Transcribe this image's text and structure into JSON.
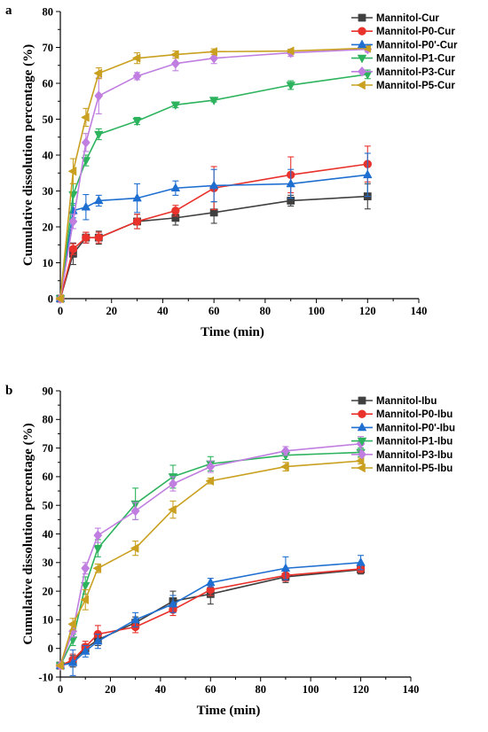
{
  "chart_data": [
    {
      "type": "line",
      "panel": "a",
      "xlabel": "Time (min)",
      "ylabel": "Cumulative dissolution percentage (%)",
      "xlim": [
        0,
        140
      ],
      "ylim": [
        0,
        80
      ],
      "xticks": [
        0,
        20,
        40,
        60,
        80,
        100,
        120,
        140
      ],
      "yticks": [
        0,
        10,
        20,
        30,
        40,
        50,
        60,
        70,
        80
      ],
      "x": [
        0,
        5,
        10,
        15,
        30,
        45,
        60,
        90,
        120
      ],
      "legend_position": "top-right",
      "series": [
        {
          "name": "Mannitol-Cur",
          "color": "#404040",
          "marker": "square",
          "values": [
            0,
            12.5,
            17.0,
            17.0,
            21.5,
            22.5,
            24.0,
            27.3,
            28.5
          ],
          "errors": [
            0,
            3.0,
            1.5,
            1.8,
            2.0,
            2.0,
            3.0,
            1.5,
            3.5
          ]
        },
        {
          "name": "Mannitol-P0-Cur",
          "color": "#e8322b",
          "marker": "circle",
          "values": [
            0,
            13.8,
            17.0,
            17.0,
            21.5,
            24.5,
            30.8,
            34.5,
            37.5
          ],
          "errors": [
            0,
            1.5,
            1.5,
            1.5,
            2.0,
            1.5,
            6.0,
            5.0,
            5.0
          ]
        },
        {
          "name": "Mannitol-P0'-Cur",
          "color": "#1f6fd1",
          "marker": "triangle-up",
          "values": [
            0,
            24.5,
            25.5,
            27.3,
            28.0,
            30.8,
            31.5,
            32.0,
            34.5
          ],
          "errors": [
            0,
            2.0,
            3.5,
            1.5,
            4.0,
            2.0,
            4.5,
            4.0,
            6.0
          ]
        },
        {
          "name": "Mannitol-P1-Cur",
          "color": "#2db35d",
          "marker": "triangle-down",
          "values": [
            0,
            29.0,
            38.5,
            45.8,
            49.5,
            54.0,
            55.3,
            59.5,
            62.5
          ],
          "errors": [
            0,
            3.0,
            1.5,
            1.5,
            1.0,
            0.8,
            0.5,
            1.2,
            1.2
          ]
        },
        {
          "name": "Mannitol-P3-Cur",
          "color": "#c07ee0",
          "marker": "diamond",
          "values": [
            0,
            21.5,
            43.5,
            56.5,
            62.0,
            65.5,
            67.0,
            68.5,
            69.5
          ],
          "errors": [
            0,
            2.0,
            2.5,
            5.0,
            1.0,
            2.0,
            1.5,
            1.0,
            0.8
          ]
        },
        {
          "name": "Mannitol-P5-Cur",
          "color": "#c9a020",
          "marker": "triangle-left",
          "values": [
            0,
            35.5,
            50.5,
            62.8,
            67.0,
            68.0,
            68.8,
            69.0,
            69.8
          ],
          "errors": [
            0,
            3.5,
            2.5,
            1.5,
            1.5,
            1.0,
            0.8,
            0.5,
            0.5
          ]
        }
      ]
    },
    {
      "type": "line",
      "panel": "b",
      "xlabel": "Time (min)",
      "ylabel": "Cumulative dissolution percentage (%)",
      "xlim": [
        0,
        140
      ],
      "ylim": [
        -10,
        90
      ],
      "xticks": [
        0,
        20,
        40,
        60,
        80,
        100,
        120,
        140
      ],
      "yticks": [
        -10,
        0,
        10,
        20,
        30,
        40,
        50,
        60,
        70,
        80,
        90
      ],
      "x": [
        0,
        5,
        10,
        15,
        30,
        45,
        60,
        90,
        120
      ],
      "legend_position": "top-right",
      "series": [
        {
          "name": "Mannitol-Ibu",
          "color": "#404040",
          "marker": "square",
          "values": [
            -6.0,
            -4.5,
            0,
            3.0,
            9.0,
            16.5,
            19.0,
            25.0,
            27.5
          ],
          "errors": [
            0,
            2.0,
            1.5,
            2.0,
            2.0,
            3.5,
            3.5,
            2.0,
            1.5
          ]
        },
        {
          "name": "Mannitol-P0-Ibu",
          "color": "#e8322b",
          "marker": "circle",
          "values": [
            -6.0,
            -4.0,
            0.5,
            5.0,
            7.5,
            13.5,
            20.5,
            25.5,
            27.8
          ],
          "errors": [
            0,
            2.0,
            2.0,
            3.0,
            2.0,
            2.0,
            2.0,
            2.0,
            1.2
          ]
        },
        {
          "name": "Mannitol-P0'-Ibu",
          "color": "#1f6fd1",
          "marker": "triangle-up",
          "values": [
            -6.0,
            -5.0,
            -1.0,
            2.5,
            10.0,
            15.5,
            23.0,
            28.0,
            30.0
          ],
          "errors": [
            0,
            4.5,
            2.0,
            2.5,
            2.5,
            3.0,
            1.5,
            4.0,
            2.5
          ]
        },
        {
          "name": "Mannitol-P1-Ibu",
          "color": "#2db35d",
          "marker": "triangle-down",
          "values": [
            -6.0,
            3.0,
            22.0,
            35.0,
            50.5,
            60.0,
            64.5,
            67.5,
            68.5
          ],
          "errors": [
            0,
            2.0,
            3.0,
            3.0,
            5.5,
            4.0,
            2.5,
            1.5,
            1.5
          ]
        },
        {
          "name": "Mannitol-P3-Ibu",
          "color": "#c07ee0",
          "marker": "diamond",
          "values": [
            -6.0,
            6.0,
            28.0,
            39.5,
            48.0,
            57.5,
            63.5,
            69.0,
            71.5
          ],
          "errors": [
            0,
            2.0,
            2.0,
            2.5,
            3.0,
            2.5,
            2.0,
            1.5,
            2.5
          ]
        },
        {
          "name": "Mannitol-P5-Ibu",
          "color": "#c9a020",
          "marker": "triangle-left",
          "values": [
            -6.0,
            8.5,
            17.0,
            28.0,
            35.0,
            48.5,
            58.5,
            63.5,
            65.5
          ],
          "errors": [
            0,
            2.0,
            3.5,
            1.5,
            2.5,
            3.0,
            1.0,
            1.5,
            1.0
          ]
        }
      ]
    }
  ]
}
